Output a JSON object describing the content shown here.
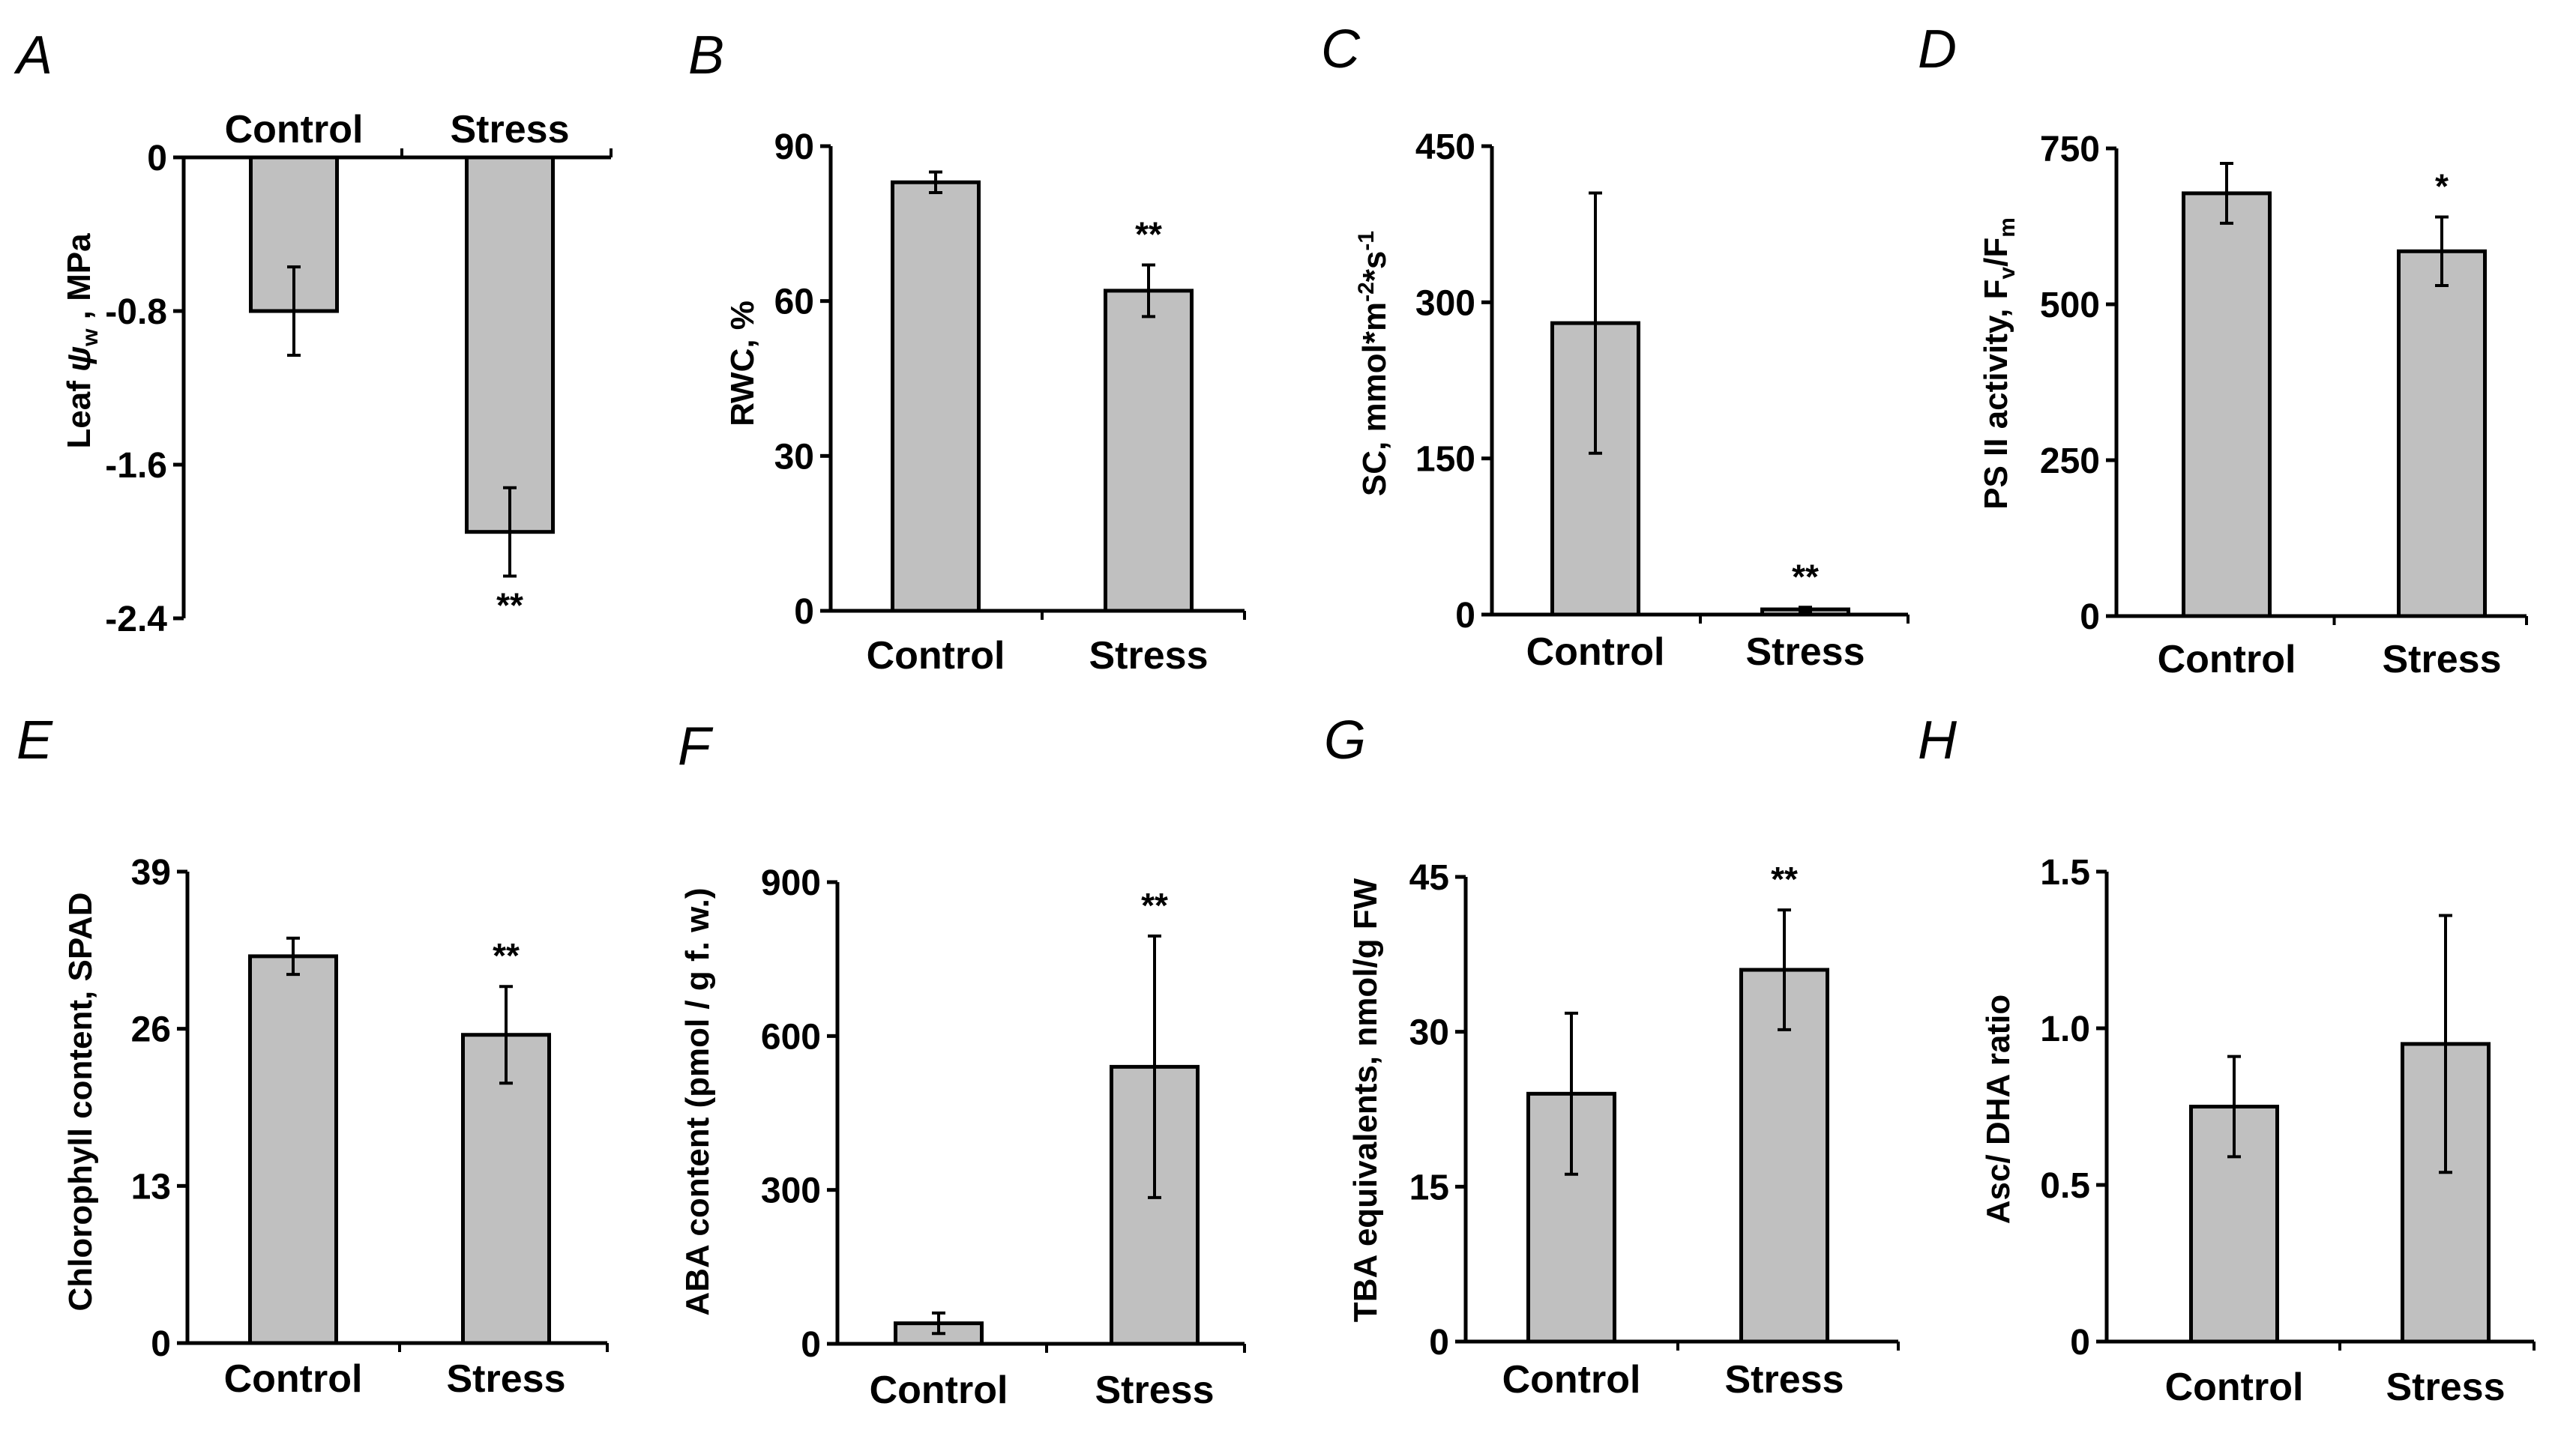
{
  "style": {
    "bar_fill": "#c0c0c0",
    "bar_stroke": "#000000",
    "axis_color": "#000000"
  },
  "chart_data": [
    {
      "panel": "A",
      "type": "bar",
      "categories": [
        "Control",
        "Stress"
      ],
      "ylabel_main": "Leaf ",
      "ylabel_greek": "ψ",
      "ylabel_sub": "w",
      "ylabel_tail": " , MPa",
      "values": [
        -0.8,
        -1.95
      ],
      "errors": [
        0.23,
        0.23
      ],
      "ylim": [
        -2.4,
        0
      ],
      "yticks": [
        0,
        -0.8,
        -1.6,
        -2.4
      ],
      "ytick_labels": [
        "0",
        "-0.8",
        "-1.6",
        "-2.4"
      ],
      "significance": [
        "",
        "**"
      ],
      "categories_on_top": true
    },
    {
      "panel": "B",
      "type": "bar",
      "categories": [
        "Control",
        "Stress"
      ],
      "ylabel": "RWC, %",
      "values": [
        83,
        62
      ],
      "errors": [
        2,
        5
      ],
      "ylim": [
        0,
        90
      ],
      "yticks": [
        0,
        30,
        60,
        90
      ],
      "ytick_labels": [
        "0",
        "30",
        "60",
        "90"
      ],
      "significance": [
        "",
        "**"
      ]
    },
    {
      "panel": "C",
      "type": "bar",
      "categories": [
        "Control",
        "Stress"
      ],
      "ylabel_main": "SC, mmol*m",
      "ylabel_sup1": "-2",
      "ylabel_mid": "*s",
      "ylabel_sup2": "-1",
      "values": [
        280,
        5
      ],
      "errors": [
        125,
        2
      ],
      "ylim": [
        0,
        450
      ],
      "yticks": [
        0,
        150,
        300,
        450
      ],
      "ytick_labels": [
        "0",
        "150",
        "300",
        "450"
      ],
      "significance": [
        "",
        "**"
      ]
    },
    {
      "panel": "D",
      "type": "bar",
      "categories": [
        "Control",
        "Stress"
      ],
      "ylabel_main": "PS II activity, F",
      "ylabel_sub1": "v",
      "ylabel_mid": "/F",
      "ylabel_sub2": "m",
      "values": [
        678,
        585
      ],
      "errors": [
        48,
        55
      ],
      "ylim": [
        0,
        750
      ],
      "yticks": [
        0,
        250,
        500,
        750
      ],
      "ytick_labels": [
        "0",
        "250",
        "500",
        "750"
      ],
      "significance": [
        "",
        "*"
      ]
    },
    {
      "panel": "E",
      "type": "bar",
      "categories": [
        "Control",
        "Stress"
      ],
      "ylabel": "Chlorophyll content, SPAD",
      "values": [
        32,
        25.5
      ],
      "errors": [
        1.5,
        4
      ],
      "ylim": [
        0,
        39
      ],
      "yticks": [
        0,
        13,
        26,
        39
      ],
      "ytick_labels": [
        "0",
        "13",
        "26",
        "39"
      ],
      "significance": [
        "",
        "**"
      ]
    },
    {
      "panel": "F",
      "type": "bar",
      "categories": [
        "Control",
        "Stress"
      ],
      "ylabel": "ABA content (pmol / g f. w.)",
      "values": [
        40,
        540
      ],
      "errors": [
        20,
        255
      ],
      "ylim": [
        0,
        900
      ],
      "yticks": [
        0,
        300,
        600,
        900
      ],
      "ytick_labels": [
        "0",
        "300",
        "600",
        "900"
      ],
      "significance": [
        "",
        "**"
      ],
      "category_label_color": "#2b3342"
    },
    {
      "panel": "G",
      "type": "bar",
      "categories": [
        "Control",
        "Stress"
      ],
      "ylabel": "TBA equivalents, nmol/g FW",
      "values": [
        24,
        36
      ],
      "errors": [
        7.8,
        5.8
      ],
      "ylim": [
        0,
        45
      ],
      "yticks": [
        0,
        15,
        30,
        45
      ],
      "ytick_labels": [
        "0",
        "15",
        "30",
        "45"
      ],
      "significance": [
        "",
        "**"
      ]
    },
    {
      "panel": "H",
      "type": "bar",
      "categories": [
        "Control",
        "Stress"
      ],
      "ylabel": "Asc/ DHA ratio",
      "values": [
        0.75,
        0.95
      ],
      "errors": [
        0.16,
        0.41
      ],
      "ylim": [
        0,
        1.5
      ],
      "yticks": [
        0,
        0.5,
        1.0,
        1.5
      ],
      "ytick_labels": [
        "0",
        "0.5",
        "1.0",
        "1.5"
      ],
      "significance": [
        "",
        ""
      ]
    }
  ]
}
